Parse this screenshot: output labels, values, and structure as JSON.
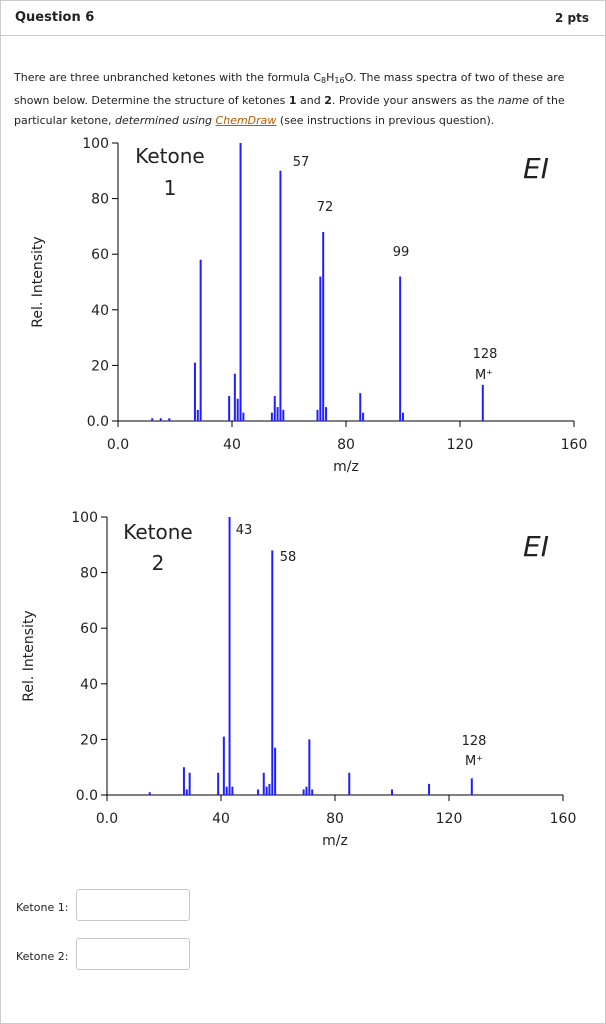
{
  "header": {
    "title": "Question 6",
    "points": "2 pts"
  },
  "question": {
    "segments": [
      {
        "text": "There are three unbranched ketones with the formula C"
      },
      {
        "text": "8",
        "style": "sub"
      },
      {
        "text": "H"
      },
      {
        "text": "16",
        "style": "sub"
      },
      {
        "text": "O.  The mass spectra of two of these are shown below. Determine the structure of ketones "
      },
      {
        "text": "1",
        "style": "bold"
      },
      {
        "text": " and "
      },
      {
        "text": "2",
        "style": "bold"
      },
      {
        "text": ". Provide your answers as the "
      },
      {
        "text": "name",
        "style": "italic"
      },
      {
        "text": " of the particular ketone, "
      },
      {
        "text": "determined using ",
        "style": "italic"
      },
      {
        "text": "ChemDraw",
        "style": "link"
      },
      {
        "text": " (see instructions in previous question)."
      }
    ]
  },
  "chart_data": [
    {
      "type": "bar",
      "color": "#1f1fff",
      "xlabel": "m/z",
      "ylabel": "Rel. Intensity",
      "annotations": [
        "Ketone",
        "1",
        "EI",
        "57",
        "72",
        "99",
        "128",
        "M⁺"
      ],
      "x": [
        12,
        15,
        18,
        27,
        28,
        29,
        39,
        41,
        42,
        43,
        44,
        54,
        55,
        56,
        57,
        58,
        70,
        71,
        72,
        73,
        85,
        86,
        99,
        100,
        128
      ],
      "values": [
        1,
        1,
        1,
        21,
        4,
        58,
        9,
        17,
        8,
        100,
        3,
        3,
        9,
        5,
        90,
        4,
        4,
        52,
        68,
        5,
        10,
        3,
        52,
        3,
        13
      ],
      "xlim": [
        0,
        160
      ],
      "xticks": [
        {
          "value": 0,
          "label": "0.0"
        },
        40,
        80,
        120,
        160
      ],
      "ylim": [
        0,
        100
      ],
      "yticks": [
        {
          "value": 0,
          "label": "0.0"
        },
        20,
        40,
        60,
        80,
        100
      ]
    },
    {
      "type": "bar",
      "color": "#1f1fff",
      "xlabel": "m/z",
      "ylabel": "Rel. Intensity",
      "annotations": [
        "Ketone",
        "2",
        "EI",
        "43",
        "58",
        "128",
        "M⁺"
      ],
      "x": [
        15,
        27,
        28,
        29,
        39,
        41,
        42,
        43,
        44,
        53,
        55,
        56,
        57,
        58,
        59,
        69,
        70,
        71,
        72,
        85,
        100,
        113,
        128
      ],
      "values": [
        1,
        10,
        2,
        8,
        8,
        21,
        3,
        100,
        3,
        2,
        8,
        3,
        4,
        88,
        17,
        2,
        3,
        20,
        2,
        8,
        2,
        4,
        6
      ],
      "xlim": [
        0,
        160
      ],
      "xticks": [
        {
          "value": 0,
          "label": "0.0"
        },
        40,
        80,
        120,
        160
      ],
      "ylim": [
        0,
        100
      ],
      "yticks": [
        {
          "value": 0,
          "label": "0.0"
        },
        20,
        40,
        60,
        80,
        100
      ]
    }
  ],
  "answers": [
    {
      "label": "Ketone 1:"
    },
    {
      "label": "Ketone 2:"
    }
  ]
}
